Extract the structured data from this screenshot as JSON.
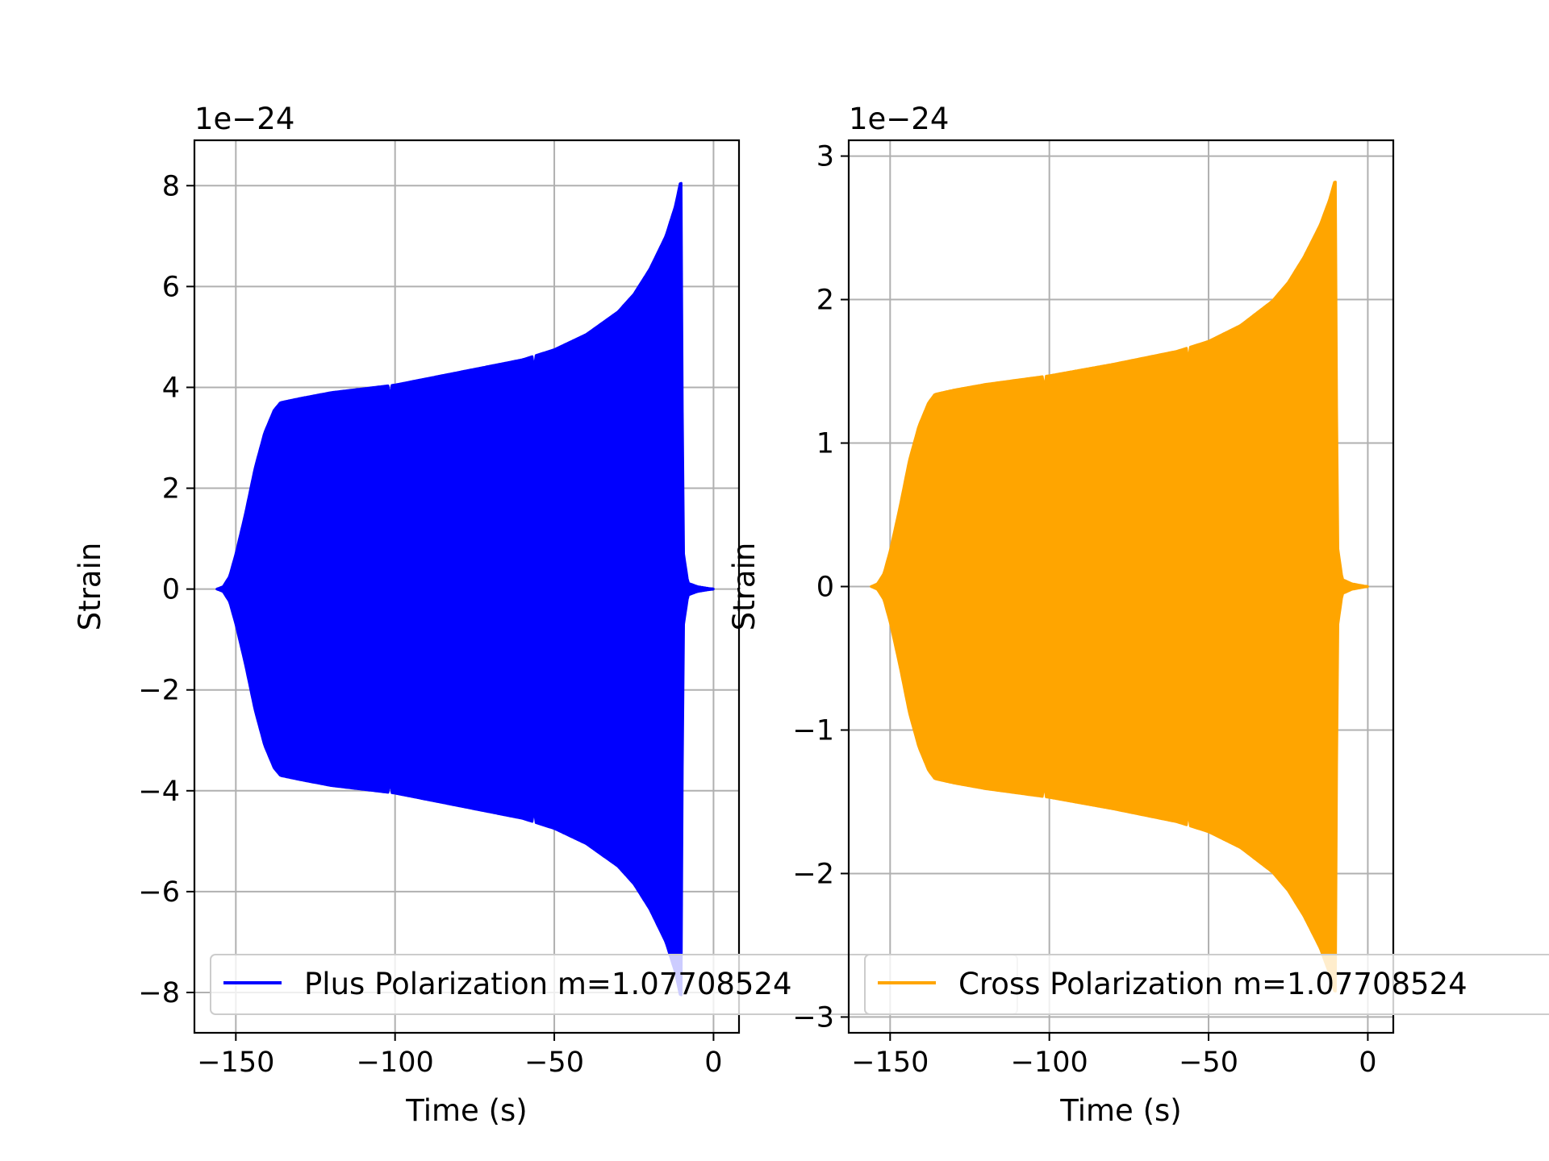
{
  "chart_data": [
    {
      "type": "line",
      "xlabel": "Time (s)",
      "ylabel": "Strain",
      "offset_text": "1e−24",
      "xlim": [
        -163,
        8
      ],
      "ylim": [
        -8.8,
        8.9
      ],
      "xticks": [
        -150,
        -100,
        -50,
        0
      ],
      "xtick_labels": [
        "−150",
        "−100",
        "−50",
        "0"
      ],
      "yticks": [
        -8,
        -6,
        -4,
        -2,
        0,
        2,
        4,
        6,
        8
      ],
      "ytick_labels": [
        "−8",
        "−6",
        "−4",
        "−2",
        "0",
        "2",
        "4",
        "6",
        "8"
      ],
      "grid": true,
      "legend_position": "lower-left",
      "series": [
        {
          "name": "Plus Polarization m=1.07708524",
          "color": "#0000ff",
          "time_range": [
            -156,
            0
          ],
          "envelope": [
            [
              -156,
              0.0
            ],
            [
              -154,
              0.05
            ],
            [
              -152,
              0.25
            ],
            [
              -150,
              0.7
            ],
            [
              -147,
              1.5
            ],
            [
              -144,
              2.4
            ],
            [
              -141,
              3.1
            ],
            [
              -138,
              3.55
            ],
            [
              -136,
              3.7
            ],
            [
              -130,
              3.78
            ],
            [
              -120,
              3.9
            ],
            [
              -100,
              4.05
            ],
            [
              -80,
              4.3
            ],
            [
              -60,
              4.55
            ],
            [
              -50,
              4.75
            ],
            [
              -40,
              5.05
            ],
            [
              -30,
              5.5
            ],
            [
              -25,
              5.85
            ],
            [
              -20,
              6.35
            ],
            [
              -15,
              7.0
            ],
            [
              -12,
              7.6
            ],
            [
              -10.5,
              8.05
            ],
            [
              -10,
              8.05
            ],
            [
              -9.6,
              0.8
            ],
            [
              -8,
              0.12
            ],
            [
              -5,
              0.05
            ],
            [
              0,
              0.0
            ]
          ]
        }
      ]
    },
    {
      "type": "line",
      "xlabel": "Time (s)",
      "ylabel": "Strain",
      "offset_text": "1e−24",
      "xlim": [
        -163,
        8
      ],
      "ylim": [
        -3.11,
        3.11
      ],
      "xticks": [
        -150,
        -100,
        -50,
        0
      ],
      "xtick_labels": [
        "−150",
        "−100",
        "−50",
        "0"
      ],
      "yticks": [
        -3,
        -2,
        -1,
        0,
        1,
        2,
        3
      ],
      "ytick_labels": [
        "−3",
        "−2",
        "−1",
        "0",
        "1",
        "2",
        "3"
      ],
      "grid": true,
      "legend_position": "lower-left",
      "series": [
        {
          "name": "Cross Polarization m=1.07708524",
          "color": "#ffa500",
          "time_range": [
            -156,
            0
          ],
          "envelope": [
            [
              -156,
              0.0
            ],
            [
              -154,
              0.02
            ],
            [
              -152,
              0.09
            ],
            [
              -150,
              0.25
            ],
            [
              -147,
              0.55
            ],
            [
              -144,
              0.88
            ],
            [
              -141,
              1.12
            ],
            [
              -138,
              1.28
            ],
            [
              -136,
              1.34
            ],
            [
              -130,
              1.37
            ],
            [
              -120,
              1.41
            ],
            [
              -100,
              1.47
            ],
            [
              -80,
              1.55
            ],
            [
              -60,
              1.64
            ],
            [
              -50,
              1.71
            ],
            [
              -40,
              1.82
            ],
            [
              -30,
              1.99
            ],
            [
              -25,
              2.12
            ],
            [
              -20,
              2.3
            ],
            [
              -15,
              2.52
            ],
            [
              -12,
              2.7
            ],
            [
              -10.5,
              2.82
            ],
            [
              -10,
              2.82
            ],
            [
              -9.6,
              0.3
            ],
            [
              -8,
              0.05
            ],
            [
              -5,
              0.02
            ],
            [
              0,
              0.0
            ]
          ]
        }
      ]
    }
  ]
}
